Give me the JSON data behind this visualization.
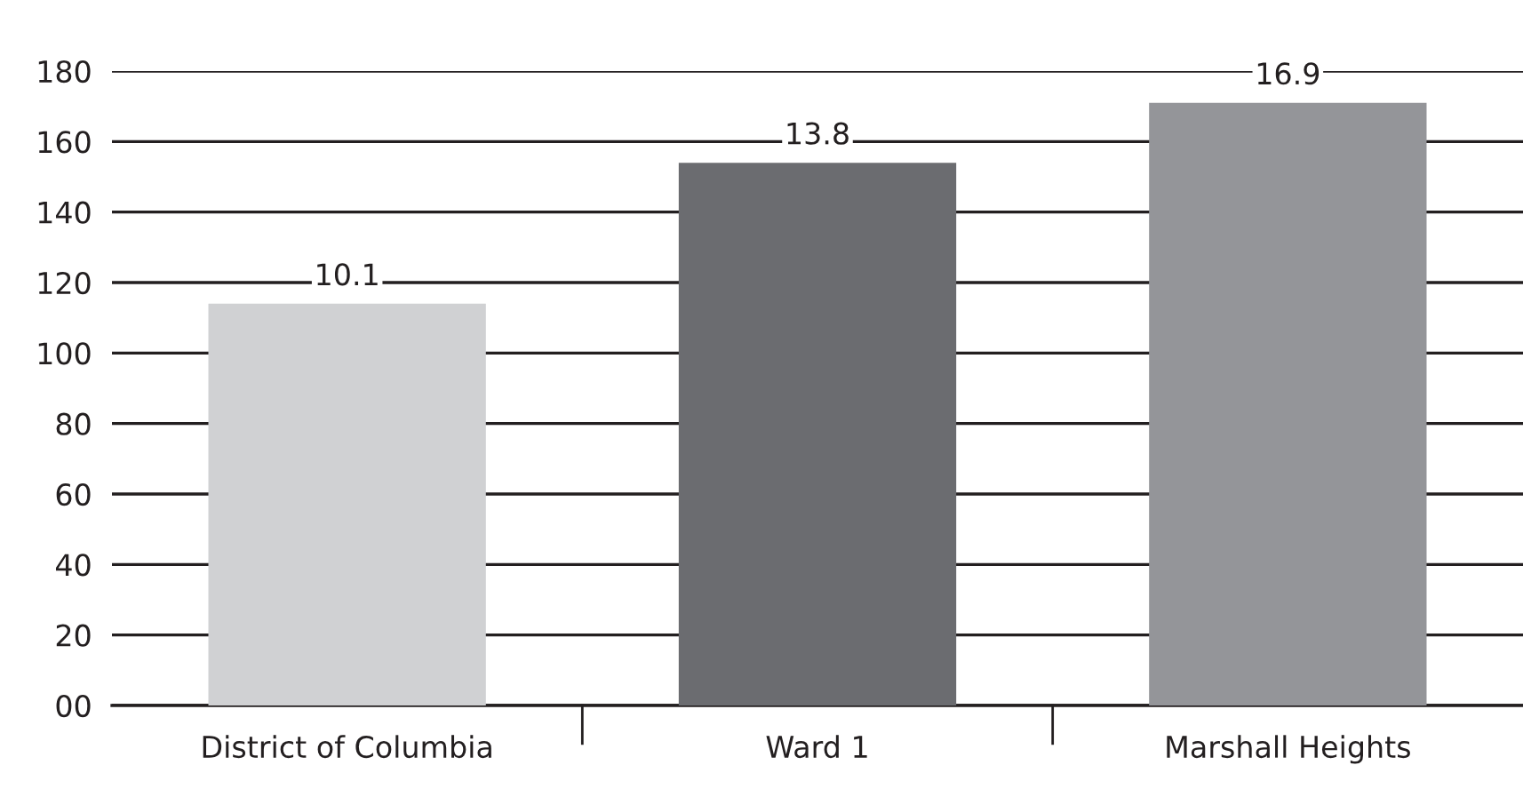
{
  "chart_data": {
    "type": "bar",
    "categories": [
      "District of Columbia",
      "Ward 1",
      "Marshall Heights"
    ],
    "values": [
      114,
      154,
      171
    ],
    "colors": [
      "#d0d1d3",
      "#6b6c70",
      "#949599"
    ],
    "annotations": [
      {
        "text": "10.1",
        "x": "District of Columbia",
        "y": 114
      },
      {
        "text": "13.8",
        "x": "Ward 1",
        "y": 154
      },
      {
        "text": "16.9",
        "x": "Marshall Heights",
        "y": 171
      }
    ],
    "ylim": [
      0,
      180
    ],
    "yticks": [
      {
        "value": 0,
        "label": "00"
      },
      20,
      40,
      60,
      80,
      100,
      120,
      140,
      160,
      180
    ],
    "grid": "y"
  }
}
